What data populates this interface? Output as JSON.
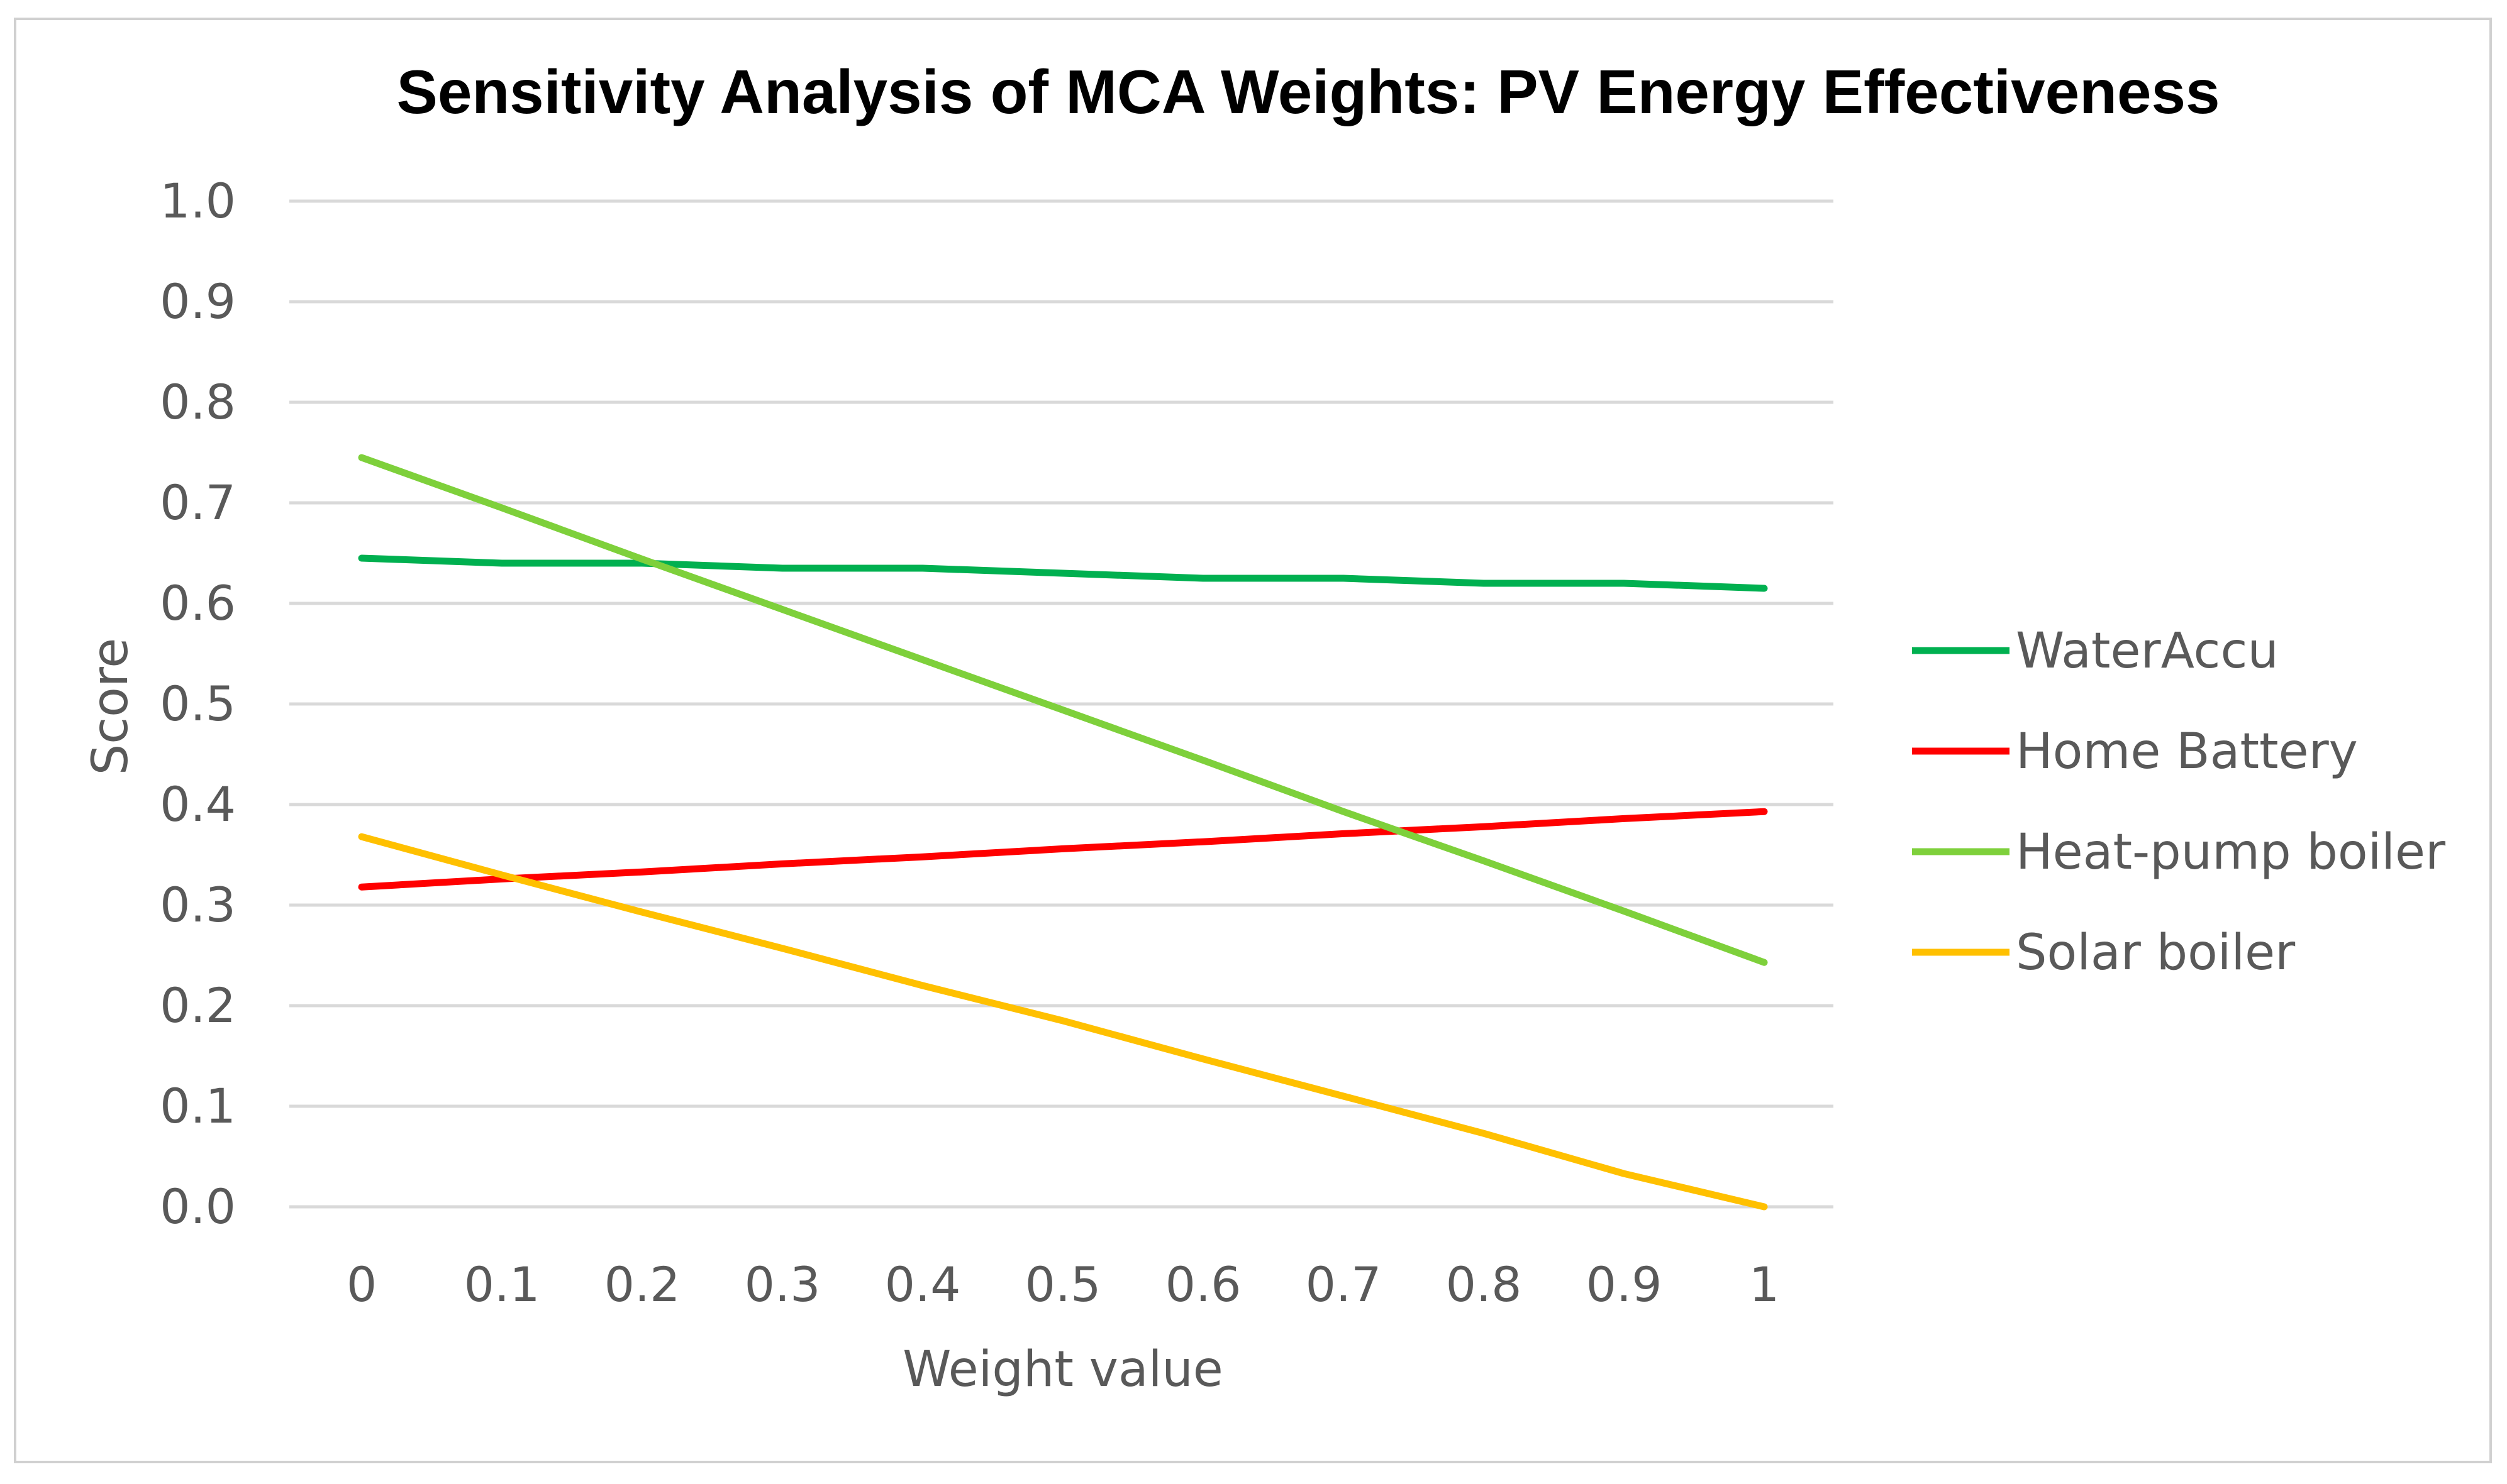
{
  "chart_data": {
    "type": "line",
    "title": "Sensitivity Analysis of MCA Weights: PV Energy Effectiveness",
    "xlabel": "Weight value",
    "ylabel": "Score",
    "x": [
      0,
      0.1,
      0.2,
      0.3,
      0.4,
      0.5,
      0.6,
      0.7,
      0.8,
      0.9,
      1
    ],
    "x_tick_labels": [
      "0",
      "0.1",
      "0.2",
      "0.3",
      "0.4",
      "0.5",
      "0.6",
      "0.7",
      "0.8",
      "0.9",
      "1"
    ],
    "ylim": [
      0,
      1
    ],
    "y_ticks": [
      0,
      0.1,
      0.2,
      0.3,
      0.4,
      0.5,
      0.6,
      0.7,
      0.8,
      0.9,
      1.0
    ],
    "y_tick_labels": [
      "0.0",
      "0.1",
      "0.2",
      "0.3",
      "0.4",
      "0.5",
      "0.6",
      "0.7",
      "0.8",
      "0.9",
      "1.0"
    ],
    "grid": "horizontal",
    "legend_position": "right",
    "series": [
      {
        "name": "WaterAccu",
        "color": "#00b050",
        "values": [
          0.645,
          0.64,
          0.64,
          0.635,
          0.635,
          0.63,
          0.625,
          0.625,
          0.62,
          0.62,
          0.615
        ]
      },
      {
        "name": "Home Battery",
        "color": "#ff0000",
        "values": [
          0.318,
          0.326,
          0.333,
          0.341,
          0.348,
          0.356,
          0.363,
          0.371,
          0.378,
          0.386,
          0.393
        ]
      },
      {
        "name": "Heat-pump boiler",
        "color": "#7ed03b",
        "values": [
          0.745,
          0.695,
          0.644,
          0.594,
          0.544,
          0.494,
          0.444,
          0.393,
          0.344,
          0.294,
          0.243
        ]
      },
      {
        "name": "Solar boiler",
        "color": "#ffc000",
        "values": [
          0.368,
          0.33,
          0.293,
          0.257,
          0.22,
          0.185,
          0.147,
          0.11,
          0.073,
          0.033,
          0.0
        ]
      }
    ]
  }
}
